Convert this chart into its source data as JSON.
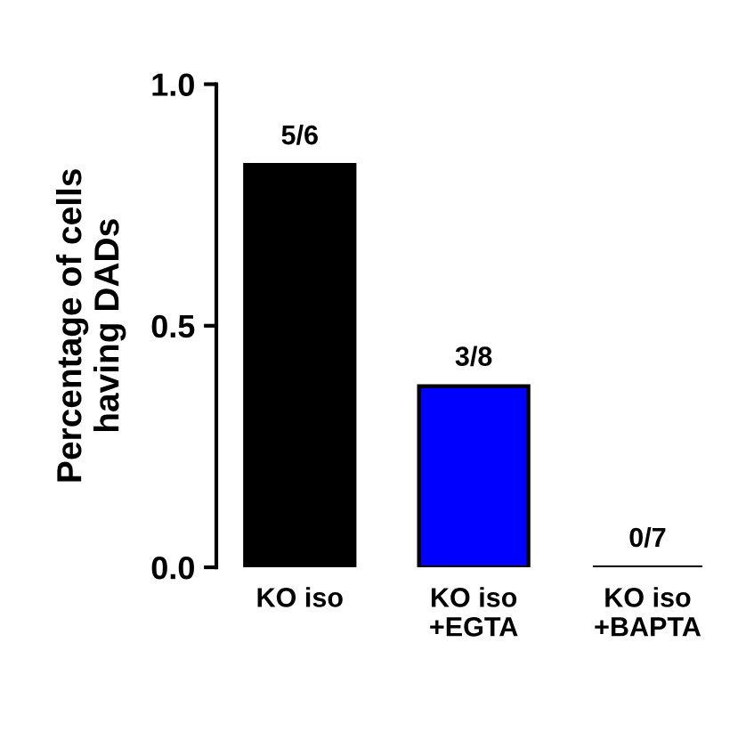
{
  "chart_data": {
    "type": "bar",
    "ylabel": "Percentage of cells\nhaving DADs",
    "categories": [
      "KO iso",
      "KO iso\n+EGTA",
      "KO iso\n+BAPTA"
    ],
    "values": [
      0.833,
      0.375,
      0
    ],
    "colors": [
      "#000000",
      "#0000ff",
      "#000000"
    ],
    "value_labels": [
      "5/6",
      "3/8",
      "0/7"
    ],
    "ylim": [
      0,
      1.0
    ],
    "yticks": [
      {
        "value": 0,
        "label": "0.0"
      },
      {
        "value": 0.5,
        "label": "0.5"
      },
      {
        "value": 1.0,
        "label": "1.0"
      }
    ],
    "grid": false,
    "legend": false
  }
}
